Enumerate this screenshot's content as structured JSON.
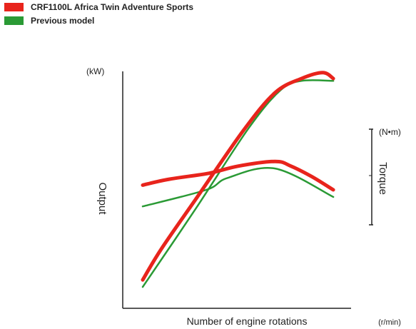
{
  "legend": [
    {
      "label": "CRF1100L Africa Twin Adventure Sports",
      "color": "#e8241c"
    },
    {
      "label": "Previous model",
      "color": "#2a9a35"
    }
  ],
  "chart_data": {
    "type": "line",
    "xlabel": "Number of engine rotations",
    "xunit": "(r/min)",
    "ylabel": "Output",
    "yunit": "(kW)",
    "y2label": "Torque",
    "y2unit": "(N•m)",
    "grid": false,
    "legend_position": "top-left",
    "note": "Relative values; no numeric ticks. x normalized 0-1 over engine speed range, values normalized 0-1 (top of plot = 1).",
    "series": [
      {
        "name": "CRF1100L Africa Twin Adventure Sports",
        "metric": "output",
        "color": "#e8241c",
        "width": 5,
        "points": [
          [
            0,
            0.12
          ],
          [
            0.07,
            0.25
          ],
          [
            0.2,
            0.46
          ],
          [
            0.38,
            0.75
          ],
          [
            0.5,
            0.91
          ],
          [
            0.6,
            0.97
          ],
          [
            0.68,
            0.995
          ],
          [
            0.72,
            0.97
          ]
        ]
      },
      {
        "name": "Previous model",
        "metric": "output",
        "color": "#2a9a35",
        "width": 2.5,
        "points": [
          [
            0,
            0.09
          ],
          [
            0.2,
            0.42
          ],
          [
            0.4,
            0.76
          ],
          [
            0.52,
            0.92
          ],
          [
            0.6,
            0.96
          ],
          [
            0.72,
            0.96
          ]
        ]
      },
      {
        "name": "CRF1100L Africa Twin Adventure Sports",
        "metric": "torque",
        "color": "#e8241c",
        "width": 5,
        "points": [
          [
            0,
            0.52
          ],
          [
            0.1,
            0.545
          ],
          [
            0.25,
            0.57
          ],
          [
            0.36,
            0.6
          ],
          [
            0.5,
            0.62
          ],
          [
            0.56,
            0.6
          ],
          [
            0.64,
            0.555
          ],
          [
            0.72,
            0.5
          ]
        ]
      },
      {
        "name": "Previous model",
        "metric": "torque",
        "color": "#2a9a35",
        "width": 2.5,
        "points": [
          [
            0,
            0.43
          ],
          [
            0.24,
            0.5
          ],
          [
            0.32,
            0.55
          ],
          [
            0.5,
            0.59
          ],
          [
            0.72,
            0.47
          ]
        ]
      }
    ]
  }
}
